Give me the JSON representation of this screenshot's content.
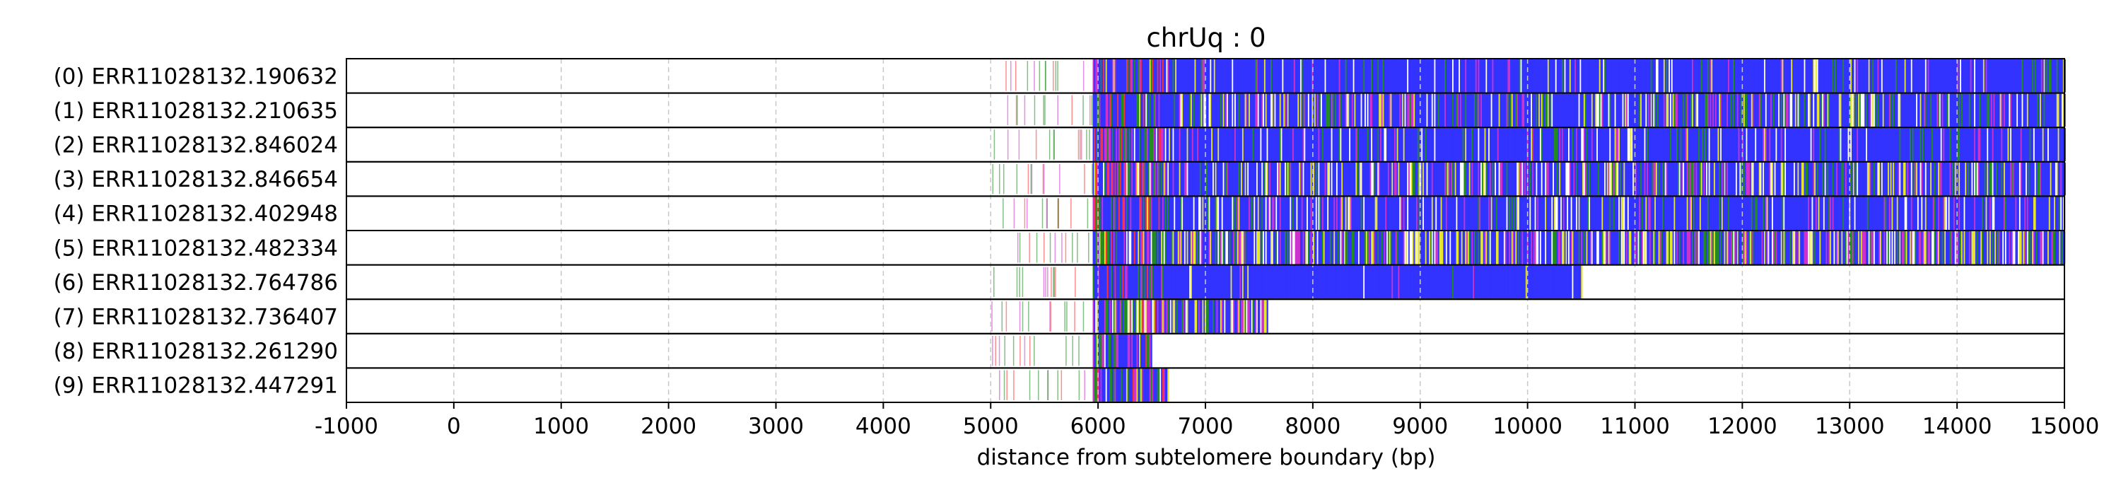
{
  "chart_data": {
    "type": "heatmap",
    "title": "chrUq : 0",
    "xlabel": "distance from subtelomere boundary (bp)",
    "xlim": [
      -1000,
      15000
    ],
    "xticks": [
      -1000,
      0,
      1000,
      2000,
      3000,
      4000,
      5000,
      6000,
      7000,
      8000,
      9000,
      10000,
      11000,
      12000,
      13000,
      14000,
      15000
    ],
    "xtick_labels": [
      "-1000",
      "0",
      "1000",
      "2000",
      "3000",
      "4000",
      "5000",
      "6000",
      "7000",
      "8000",
      "9000",
      "10000",
      "11000",
      "12000",
      "13000",
      "14000",
      "15000"
    ],
    "grid": "vertical dashed",
    "colors": {
      "tvr_blue": "#3333ff",
      "tvr_green": "#228b22",
      "tvr_red": "#ff3333",
      "tvr_yellow": "#e6e633",
      "tvr_magenta": "#cc33cc",
      "tvr_white": "#ffffff",
      "grid": "#c8c8c8",
      "row_border": "#000000"
    },
    "reads": [
      {
        "label": "(0) ERR11028132.190632",
        "start": 5000,
        "end": 15000,
        "tvr_end": 5950,
        "blue_dominance": 0.85
      },
      {
        "label": "(1) ERR11028132.210635",
        "start": 5000,
        "end": 15000,
        "tvr_end": 5950,
        "blue_dominance": 0.62
      },
      {
        "label": "(2) ERR11028132.846024",
        "start": 5000,
        "end": 15000,
        "tvr_end": 5950,
        "blue_dominance": 0.78
      },
      {
        "label": "(3) ERR11028132.846654",
        "start": 5000,
        "end": 15000,
        "tvr_end": 5950,
        "blue_dominance": 0.6
      },
      {
        "label": "(4) ERR11028132.402948",
        "start": 5000,
        "end": 15000,
        "tvr_end": 5950,
        "blue_dominance": 0.75
      },
      {
        "label": "(5) ERR11028132.482334",
        "start": 5000,
        "end": 15000,
        "tvr_end": 5950,
        "blue_dominance": 0.45
      },
      {
        "label": "(6) ERR11028132.764786",
        "start": 5000,
        "end": 10500,
        "tvr_end": 5950,
        "blue_dominance": 0.95
      },
      {
        "label": "(7) ERR11028132.736407",
        "start": 5000,
        "end": 7580,
        "tvr_end": 5950,
        "blue_dominance": 0.4
      },
      {
        "label": "(8) ERR11028132.261290",
        "start": 5000,
        "end": 6500,
        "tvr_end": 5950,
        "blue_dominance": 0.7
      },
      {
        "label": "(9) ERR11028132.447291",
        "start": 5000,
        "end": 6650,
        "tvr_end": 5950,
        "blue_dominance": 0.5
      }
    ]
  }
}
